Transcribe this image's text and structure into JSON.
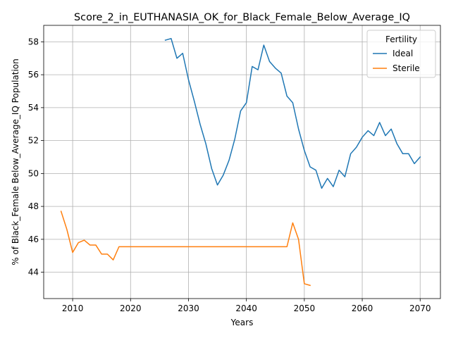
{
  "chart_data": {
    "type": "line",
    "title": "Score_2_in_EUTHANASIA_OK_for_Black_Female_Below_Average_IQ",
    "xlabel": "Years",
    "ylabel": "% of Black_Female Below_Average_IQ Population",
    "xlim": [
      2005,
      2073.5
    ],
    "ylim": [
      42.4,
      59.0
    ],
    "xticks": [
      2010,
      2020,
      2030,
      2040,
      2050,
      2060,
      2070
    ],
    "yticks": [
      44,
      46,
      48,
      50,
      52,
      54,
      56,
      58
    ],
    "grid": true,
    "legend": {
      "title": "Fertility",
      "placement": "top-right"
    },
    "series": [
      {
        "name": "Ideal",
        "color": "#1f77b4",
        "points": [
          [
            2026,
            58.1
          ],
          [
            2027,
            58.2
          ],
          [
            2028,
            57.0
          ],
          [
            2029,
            57.3
          ],
          [
            2030,
            55.7
          ],
          [
            2031,
            54.4
          ],
          [
            2032,
            53.0
          ],
          [
            2033,
            51.8
          ],
          [
            2034,
            50.3
          ],
          [
            2035,
            49.3
          ],
          [
            2036,
            49.9
          ],
          [
            2037,
            50.8
          ],
          [
            2038,
            52.1
          ],
          [
            2039,
            53.8
          ],
          [
            2040,
            54.3
          ],
          [
            2041,
            56.5
          ],
          [
            2042,
            56.3
          ],
          [
            2043,
            57.8
          ],
          [
            2044,
            56.8
          ],
          [
            2045,
            56.4
          ],
          [
            2046,
            56.1
          ],
          [
            2047,
            54.7
          ],
          [
            2048,
            54.3
          ],
          [
            2049,
            52.7
          ],
          [
            2050,
            51.4
          ],
          [
            2051,
            50.4
          ],
          [
            2052,
            50.2
          ],
          [
            2053,
            49.1
          ],
          [
            2054,
            49.7
          ],
          [
            2055,
            49.2
          ],
          [
            2056,
            50.2
          ],
          [
            2057,
            49.8
          ],
          [
            2058,
            51.2
          ],
          [
            2059,
            51.6
          ],
          [
            2060,
            52.2
          ],
          [
            2061,
            52.6
          ],
          [
            2062,
            52.3
          ],
          [
            2063,
            53.1
          ],
          [
            2064,
            52.3
          ],
          [
            2065,
            52.7
          ],
          [
            2066,
            51.8
          ],
          [
            2067,
            51.2
          ],
          [
            2068,
            51.2
          ],
          [
            2069,
            50.6
          ],
          [
            2070,
            51.0
          ]
        ]
      },
      {
        "name": "Sterile",
        "color": "#ff7f0e",
        "points": [
          [
            2008,
            47.7
          ],
          [
            2009,
            46.6
          ],
          [
            2010,
            45.2
          ],
          [
            2011,
            45.8
          ],
          [
            2012,
            45.95
          ],
          [
            2013,
            45.65
          ],
          [
            2014,
            45.65
          ],
          [
            2015,
            45.1
          ],
          [
            2016,
            45.1
          ],
          [
            2017,
            44.75
          ],
          [
            2018,
            45.55
          ],
          [
            2020,
            45.55
          ],
          [
            2025,
            45.55
          ],
          [
            2030,
            45.55
          ],
          [
            2035,
            45.55
          ],
          [
            2040,
            45.55
          ],
          [
            2045,
            45.55
          ],
          [
            2047,
            45.55
          ],
          [
            2048,
            47.0
          ],
          [
            2049,
            46.0
          ],
          [
            2050,
            43.3
          ],
          [
            2051,
            43.2
          ]
        ]
      }
    ]
  }
}
